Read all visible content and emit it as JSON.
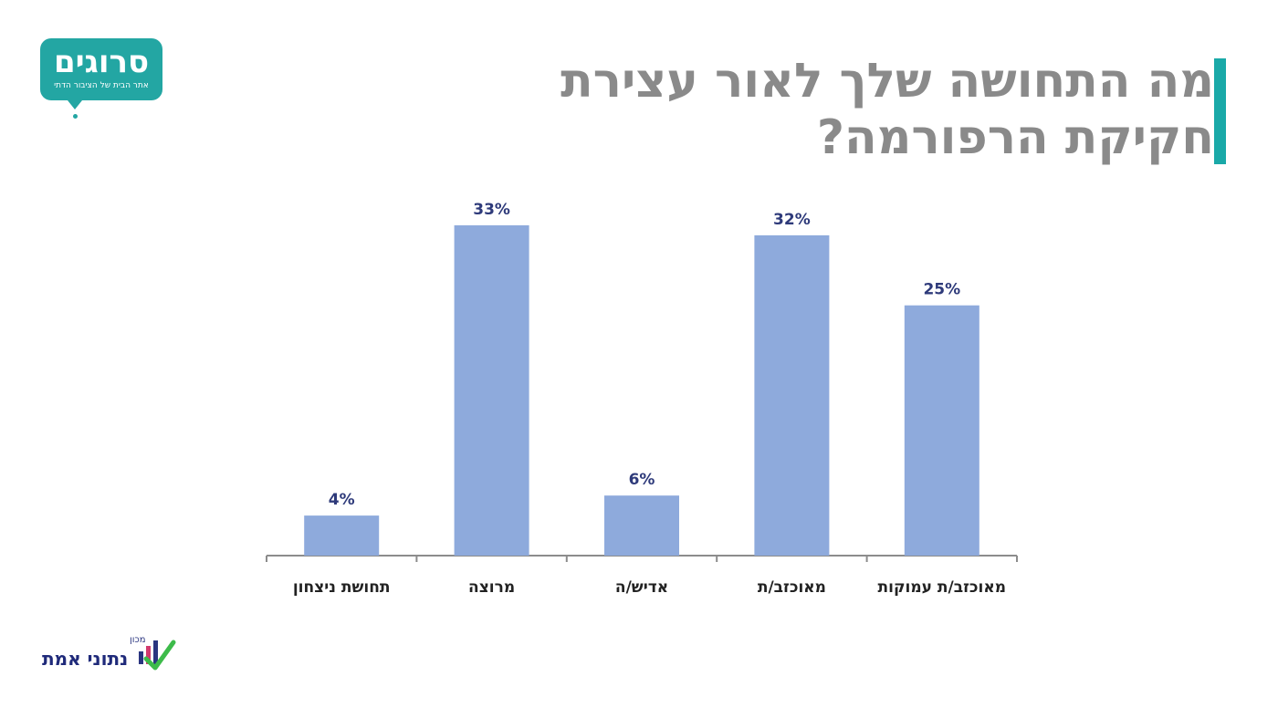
{
  "title": {
    "line1": "מה התחושה שלך לאור עצירת",
    "line2": "חקיקת הרפורמה?"
  },
  "logos": {
    "srugim": {
      "name": "סרוגים",
      "tagline": "אתר הבית של הציבור הדתי",
      "color": "#23a6a3"
    },
    "emet": {
      "prefix": "מכון",
      "name": "נתוני אמת"
    }
  },
  "colors": {
    "bar": "#8eaadc",
    "accent": "#1aa9a8",
    "title": "#8a8a8a",
    "value_label": "#2e3a7a"
  },
  "chart_data": {
    "type": "bar",
    "title": "מה התחושה שלך לאור עצירת חקיקת הרפורמה?",
    "categories": [
      "תחושת ניצחון",
      "מרוצה",
      "אדיש/ה",
      "מאוכזב/ת",
      "מאוכזב/ת עמוקות"
    ],
    "values": [
      4,
      33,
      6,
      32,
      25
    ],
    "value_labels": [
      "4%",
      "33%",
      "6%",
      "32%",
      "25%"
    ],
    "unit": "%",
    "ylim": [
      0,
      35
    ],
    "grid": false,
    "legend": "none"
  }
}
